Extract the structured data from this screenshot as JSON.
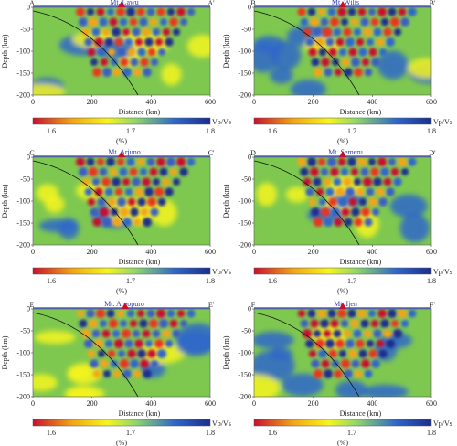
{
  "panels": [
    {
      "start": "A",
      "end": "A'",
      "volcano": "Mt. Lawu"
    },
    {
      "start": "B",
      "end": "B'",
      "volcano": "Mt. Wilis"
    },
    {
      "start": "C",
      "end": "C'",
      "volcano": "Mt. Arjuno"
    },
    {
      "start": "D",
      "end": "D'",
      "volcano": "Mt. Semeru"
    },
    {
      "start": "E",
      "end": "E'",
      "volcano": "Mt. Argopuro"
    },
    {
      "start": "F",
      "end": "F'",
      "volcano": "Mt. Ijen"
    }
  ],
  "axes": {
    "y_label": "Depth (km)",
    "x_label": "Distance (km)",
    "y_ticks": [
      "0",
      "-50",
      "-100",
      "-150",
      "-200"
    ],
    "x_ticks": [
      "0",
      "200",
      "400",
      "600"
    ]
  },
  "colorbar": {
    "label": "Vp/Vs",
    "unit": "(%)",
    "ticks": [
      "1.6",
      "1.7",
      "1.8"
    ],
    "colors": [
      "#c8102e",
      "#f2a516",
      "#f5f51e",
      "#8fd66a",
      "#2f67c9",
      "#1a2d8c"
    ]
  },
  "colors": {
    "background": "#7ec850",
    "marker": "#c8102e"
  }
}
